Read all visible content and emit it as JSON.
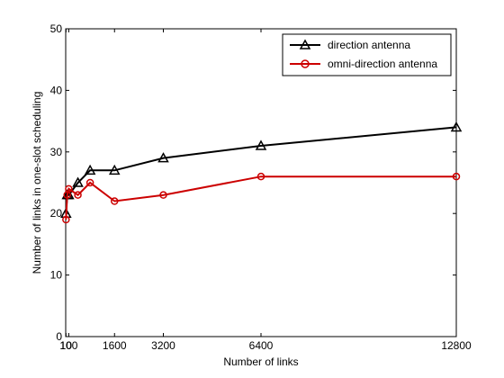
{
  "chart_data": {
    "type": "line",
    "xlabel": "Number of links",
    "ylabel": "Number of links in one-slot scheduling",
    "xlim": [
      0,
      12800
    ],
    "ylim": [
      0,
      50
    ],
    "x_ticks": [
      10,
      100,
      1600,
      3200,
      6400,
      12800
    ],
    "x_tick_labels": [
      "10",
      "100",
      "1600",
      "3200",
      "6400",
      "12800"
    ],
    "y_ticks": [
      0,
      10,
      20,
      30,
      40,
      50
    ],
    "y_tick_labels": [
      "0",
      "10",
      "20",
      "30",
      "40",
      "50"
    ],
    "grid": false,
    "legend_position": "top-right",
    "series": [
      {
        "name": "direction antenna",
        "color": "#000000",
        "marker": "triangle",
        "x": [
          10,
          50,
          100,
          400,
          800,
          1600,
          3200,
          6400,
          12800
        ],
        "y": [
          20,
          23,
          23,
          25,
          27,
          27,
          29,
          31,
          34
        ]
      },
      {
        "name": "omni-direction antenna",
        "color": "#cc0000",
        "marker": "circle",
        "x": [
          10,
          50,
          100,
          400,
          800,
          1600,
          3200,
          6400,
          12800
        ],
        "y": [
          19,
          23,
          24,
          23,
          25,
          22,
          23,
          26,
          26
        ]
      }
    ]
  }
}
